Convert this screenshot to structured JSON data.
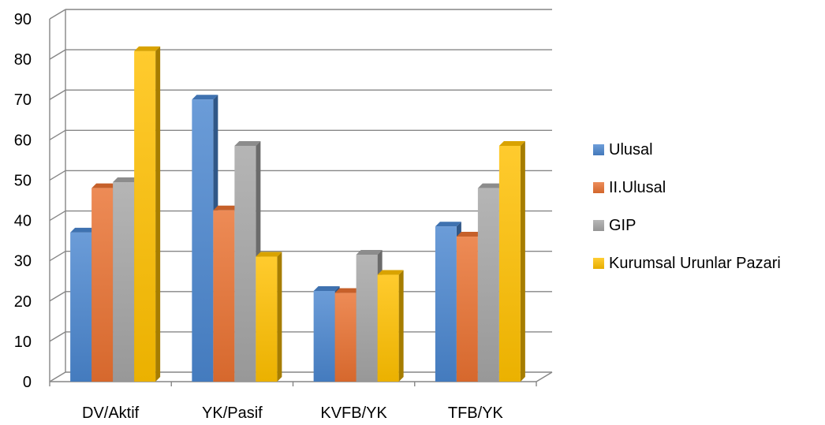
{
  "chart_data": {
    "type": "bar",
    "categories": [
      "DV/Aktif",
      "YK/Pasif",
      "KVFB/YK",
      "TFB/YK"
    ],
    "series": [
      {
        "name": "Ulusal",
        "values": [
          37,
          70,
          22.5,
          38.5
        ],
        "color": "#4A86CF"
      },
      {
        "name": "II.Ulusal",
        "values": [
          48,
          42.5,
          22,
          36
        ],
        "color": "#E97131"
      },
      {
        "name": "GIP",
        "values": [
          49.5,
          58.5,
          31.5,
          48
        ],
        "color": "#A5A5A5"
      },
      {
        "name": "Kurumsal Urunlar Pazari",
        "values": [
          82,
          31,
          26.5,
          58.5
        ],
        "color": "#FFC000"
      }
    ],
    "ylim": [
      0,
      90
    ],
    "yticks": [
      "0",
      "10",
      "20",
      "30",
      "40",
      "50",
      "60",
      "70",
      "80",
      "90"
    ],
    "grid": true,
    "legend_position": "right",
    "title": "",
    "xlabel": "",
    "ylabel": ""
  }
}
